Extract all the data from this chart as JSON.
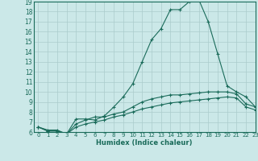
{
  "xlabel": "Humidex (Indice chaleur)",
  "bg_color": "#cbe8e8",
  "line_color": "#1a6b5a",
  "grid_color": "#aacccc",
  "x_values": [
    0,
    1,
    2,
    3,
    4,
    5,
    6,
    7,
    8,
    9,
    10,
    11,
    12,
    13,
    14,
    15,
    16,
    17,
    18,
    19,
    20,
    21,
    22,
    23
  ],
  "line1_y": [
    6.5,
    6.2,
    6.2,
    5.8,
    7.3,
    7.3,
    7.2,
    7.6,
    8.5,
    9.5,
    10.8,
    13.0,
    15.2,
    16.3,
    18.2,
    18.2,
    19.0,
    19.2,
    17.0,
    13.8,
    10.6,
    10.0,
    9.5,
    8.5
  ],
  "line2_y": [
    6.5,
    6.1,
    6.1,
    5.8,
    6.8,
    7.2,
    7.5,
    7.5,
    7.8,
    8.0,
    8.5,
    9.0,
    9.3,
    9.5,
    9.7,
    9.7,
    9.8,
    9.9,
    10.0,
    10.0,
    10.0,
    9.8,
    8.8,
    8.5
  ],
  "line3_y": [
    6.5,
    6.1,
    6.1,
    5.8,
    6.5,
    6.8,
    7.0,
    7.2,
    7.5,
    7.7,
    8.0,
    8.3,
    8.5,
    8.7,
    8.9,
    9.0,
    9.1,
    9.2,
    9.3,
    9.4,
    9.5,
    9.4,
    8.5,
    8.2
  ],
  "ylim": [
    6,
    19
  ],
  "xlim": [
    -0.5,
    23
  ],
  "yticks": [
    6,
    7,
    8,
    9,
    10,
    11,
    12,
    13,
    14,
    15,
    16,
    17,
    18,
    19
  ],
  "xticks": [
    0,
    1,
    2,
    3,
    4,
    5,
    6,
    7,
    8,
    9,
    10,
    11,
    12,
    13,
    14,
    15,
    16,
    17,
    18,
    19,
    20,
    21,
    22,
    23
  ]
}
